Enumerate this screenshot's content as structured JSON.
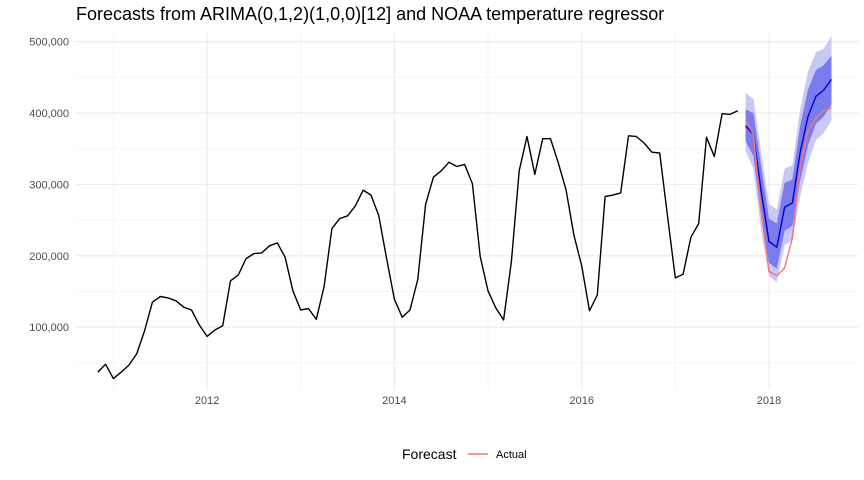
{
  "chart_data": {
    "type": "line",
    "title": "Forecasts from ARIMA(0,1,2)(1,0,0)[12] and NOAA temperature regressor",
    "xlabel": "",
    "ylabel": "",
    "xlim": [
      2010.6,
      2018.95
    ],
    "ylim": [
      12000,
      512000
    ],
    "x_ticks": [
      2012,
      2014,
      2016,
      2018
    ],
    "x_tick_labels": [
      "2012",
      "2014",
      "2016",
      "2018"
    ],
    "y_ticks": [
      100000,
      200000,
      300000,
      400000,
      500000
    ],
    "y_tick_labels": [
      "100,000",
      "200,000",
      "300,000",
      "400,000",
      "500,000"
    ],
    "grid": true,
    "history": {
      "start": 2010.833,
      "step": 0.08333,
      "values": [
        37000,
        48000,
        28000,
        37000,
        47000,
        63000,
        95000,
        135000,
        143000,
        141000,
        137000,
        128000,
        124000,
        103000,
        87000,
        96000,
        102000,
        165000,
        173000,
        196000,
        203000,
        204000,
        214000,
        218000,
        198000,
        151000,
        124000,
        126000,
        111000,
        157000,
        238000,
        252000,
        256000,
        270000,
        292000,
        285000,
        256000,
        196000,
        139000,
        114000,
        124000,
        167000,
        272000,
        310000,
        319000,
        331000,
        325000,
        328000,
        301000,
        199000,
        151000,
        127000,
        110000,
        192000,
        319000,
        367000,
        314000,
        364000,
        364000,
        330000,
        292000,
        229000,
        186000,
        123000,
        145000,
        283000,
        285000,
        288000,
        368000,
        367000,
        358000,
        345000,
        344000,
        256000,
        169000,
        174000,
        226000,
        245000,
        366000,
        339000,
        399000,
        398000,
        403000
      ]
    },
    "forecast": {
      "start": 2017.75,
      "step": 0.08333,
      "mean": [
        382000,
        370000,
        290000,
        220000,
        212000,
        268000,
        274000,
        345000,
        395000,
        423000,
        432000,
        447000
      ],
      "lo80": [
        360000,
        340000,
        255000,
        190000,
        182000,
        235000,
        242000,
        305000,
        355000,
        385000,
        395000,
        412000
      ],
      "hi80": [
        405000,
        400000,
        325000,
        252000,
        245000,
        302000,
        307000,
        382000,
        433000,
        460000,
        467000,
        480000
      ],
      "lo95": [
        347000,
        322000,
        235000,
        172000,
        163000,
        215000,
        222000,
        283000,
        330000,
        362000,
        372000,
        390000
      ],
      "hi95": [
        428000,
        420000,
        345000,
        272000,
        265000,
        322000,
        327000,
        405000,
        458000,
        485000,
        490000,
        508000
      ]
    },
    "actual": {
      "start": 2017.75,
      "step": 0.08333,
      "values": [
        390000,
        370000,
        262000,
        178000,
        172000,
        183000,
        225000,
        325000,
        375000,
        393000,
        403000,
        407000
      ]
    },
    "legend": {
      "title": "Forecast",
      "placement": "bottom",
      "items": [
        {
          "label": "Actual",
          "color": "#f8766d"
        }
      ]
    },
    "colors": {
      "history": "#000000",
      "mean": "#0000cc",
      "band80": "#7b7bf0",
      "band95": "#c8c8f5",
      "actual": "#f8766d",
      "grid_major": "#ebebeb",
      "grid_minor": "#f5f5f5"
    }
  }
}
